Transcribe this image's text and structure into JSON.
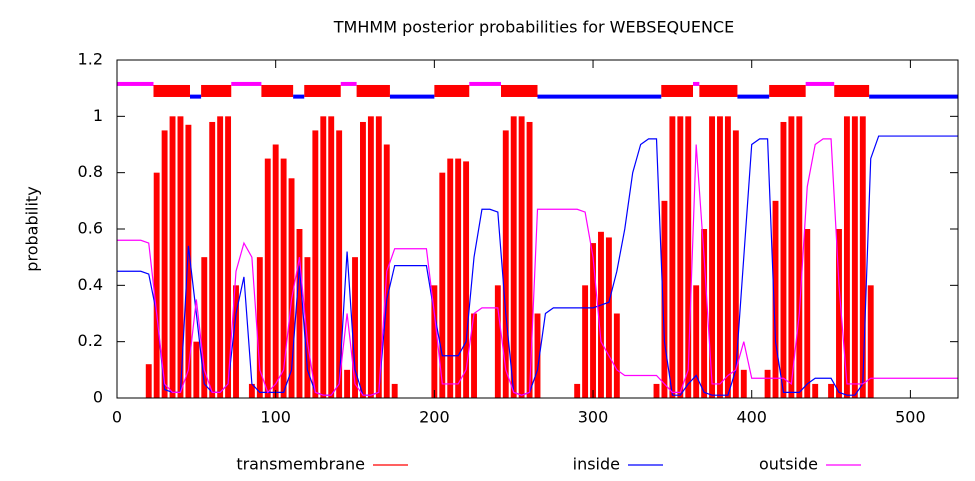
{
  "chart_data": {
    "type": "tmhmm",
    "title": "TMHMM posterior probabilities for WEBSEQUENCE",
    "y_label": "probability",
    "xlim": [
      0,
      530
    ],
    "ylim": [
      0,
      1.2
    ],
    "xticks": [
      0,
      100,
      200,
      300,
      400,
      500
    ],
    "yticks": [
      0,
      0.2,
      0.4,
      0.6,
      0.8,
      1,
      1.2
    ],
    "x": [
      0,
      5,
      10,
      15,
      20,
      25,
      30,
      35,
      40,
      45,
      50,
      55,
      60,
      65,
      70,
      75,
      80,
      85,
      90,
      95,
      100,
      105,
      110,
      115,
      120,
      125,
      130,
      135,
      140,
      145,
      150,
      155,
      160,
      165,
      170,
      175,
      180,
      185,
      190,
      195,
      200,
      205,
      210,
      215,
      220,
      225,
      230,
      235,
      240,
      245,
      250,
      255,
      260,
      265,
      270,
      275,
      280,
      285,
      290,
      295,
      300,
      305,
      310,
      315,
      320,
      325,
      330,
      335,
      340,
      345,
      350,
      355,
      360,
      365,
      370,
      375,
      380,
      385,
      390,
      395,
      400,
      405,
      410,
      415,
      420,
      425,
      430,
      435,
      440,
      445,
      450,
      455,
      460,
      465,
      470,
      475,
      480,
      485,
      490,
      495,
      500,
      505,
      510,
      515,
      520,
      525,
      530
    ],
    "series": [
      {
        "name": "transmembrane",
        "color": "#ff0000",
        "style": "impulses",
        "values": [
          0,
          0,
          0,
          0,
          0.12,
          0.8,
          0.95,
          1,
          1,
          0.97,
          0.2,
          0.5,
          0.98,
          1,
          1,
          0.4,
          0,
          0.05,
          0.5,
          0.85,
          0.9,
          0.85,
          0.78,
          0.6,
          0.5,
          0.95,
          1,
          1,
          0.95,
          0.1,
          0.5,
          0.98,
          1,
          1,
          0.9,
          0.05,
          0,
          0,
          0,
          0,
          0.4,
          0.8,
          0.85,
          0.85,
          0.84,
          0.3,
          0,
          0,
          0.4,
          0.95,
          1,
          1,
          0.98,
          0.3,
          0,
          0,
          0,
          0,
          0.05,
          0.4,
          0.55,
          0.59,
          0.57,
          0.3,
          0,
          0,
          0,
          0,
          0.05,
          0.7,
          1,
          1,
          1,
          0.4,
          0.6,
          1,
          1,
          1,
          0.95,
          0.1,
          0,
          0,
          0.1,
          0.7,
          0.98,
          1,
          1,
          0.6,
          0.05,
          0,
          0.05,
          0.6,
          1,
          1,
          1,
          0.4,
          0,
          0,
          0,
          0,
          0,
          0,
          0,
          0,
          0,
          0,
          0
        ],
        "segments": [
          [
            23,
            46
          ],
          [
            53,
            72
          ],
          [
            91,
            111
          ],
          [
            118,
            141
          ],
          [
            151,
            172
          ],
          [
            200,
            222
          ],
          [
            242,
            265
          ],
          [
            343,
            363
          ],
          [
            367,
            391
          ],
          [
            411,
            434
          ],
          [
            452,
            474
          ]
        ]
      },
      {
        "name": "inside",
        "color": "#0000ff",
        "style": "line",
        "values": [
          0.45,
          0.45,
          0.45,
          0.45,
          0.44,
          0.3,
          0.03,
          0.02,
          0.02,
          0.54,
          0.3,
          0.05,
          0.02,
          0.02,
          0.05,
          0.3,
          0.43,
          0.05,
          0.02,
          0.02,
          0.02,
          0.02,
          0.1,
          0.47,
          0.1,
          0.02,
          0.01,
          0.01,
          0.05,
          0.52,
          0.1,
          0.01,
          0.01,
          0.02,
          0.35,
          0.47,
          0.47,
          0.47,
          0.47,
          0.47,
          0.3,
          0.15,
          0.15,
          0.15,
          0.2,
          0.5,
          0.67,
          0.67,
          0.66,
          0.3,
          0.02,
          0.01,
          0.02,
          0.1,
          0.3,
          0.32,
          0.32,
          0.32,
          0.32,
          0.32,
          0.32,
          0.33,
          0.34,
          0.45,
          0.6,
          0.8,
          0.9,
          0.92,
          0.92,
          0.2,
          0.01,
          0.01,
          0.05,
          0.08,
          0.02,
          0.01,
          0.01,
          0.01,
          0.1,
          0.5,
          0.9,
          0.92,
          0.92,
          0.2,
          0.02,
          0.02,
          0.02,
          0.05,
          0.07,
          0.07,
          0.07,
          0.02,
          0.01,
          0.01,
          0.05,
          0.85,
          0.93,
          0.93,
          0.93,
          0.93,
          0.93,
          0.93,
          0.93,
          0.93,
          0.93,
          0.93,
          0.93
        ],
        "segments": [
          [
            46,
            53
          ],
          [
            111,
            118
          ],
          [
            172,
            200
          ],
          [
            265,
            343
          ],
          [
            391,
            411
          ],
          [
            474,
            530
          ]
        ]
      },
      {
        "name": "outside",
        "color": "#ff00ff",
        "style": "line",
        "values": [
          0.56,
          0.56,
          0.56,
          0.56,
          0.55,
          0.3,
          0.05,
          0.02,
          0.02,
          0.1,
          0.35,
          0.1,
          0.02,
          0.02,
          0.05,
          0.45,
          0.55,
          0.5,
          0.1,
          0.02,
          0.05,
          0.1,
          0.35,
          0.5,
          0.2,
          0.02,
          0.01,
          0.01,
          0.05,
          0.3,
          0.05,
          0.01,
          0.01,
          0.02,
          0.45,
          0.53,
          0.53,
          0.53,
          0.53,
          0.53,
          0.3,
          0.05,
          0.05,
          0.05,
          0.1,
          0.3,
          0.32,
          0.32,
          0.32,
          0.1,
          0.02,
          0.01,
          0.02,
          0.67,
          0.67,
          0.67,
          0.67,
          0.67,
          0.67,
          0.66,
          0.5,
          0.2,
          0.15,
          0.1,
          0.08,
          0.08,
          0.08,
          0.08,
          0.08,
          0.05,
          0.02,
          0.02,
          0.1,
          0.9,
          0.5,
          0.05,
          0.05,
          0.08,
          0.1,
          0.2,
          0.07,
          0.07,
          0.07,
          0.07,
          0.07,
          0.05,
          0.3,
          0.75,
          0.9,
          0.92,
          0.92,
          0.4,
          0.05,
          0.05,
          0.05,
          0.07,
          0.07,
          0.07,
          0.07,
          0.07,
          0.07,
          0.07,
          0.07,
          0.07,
          0.07,
          0.07,
          0.07
        ],
        "segments": [
          [
            0,
            23
          ],
          [
            72,
            91
          ],
          [
            141,
            151
          ],
          [
            222,
            242
          ],
          [
            363,
            367
          ],
          [
            434,
            452
          ]
        ]
      }
    ]
  }
}
